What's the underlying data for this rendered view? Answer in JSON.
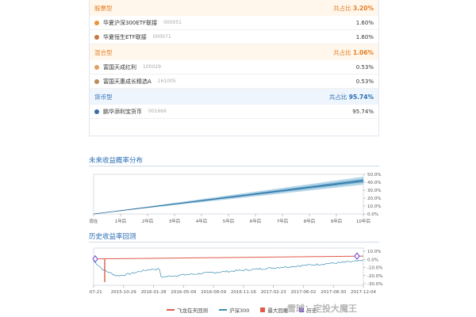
{
  "allocation": {
    "groups": [
      {
        "name": "股票型",
        "share_label": "共占比",
        "share_value": "3.20%",
        "funds": [
          {
            "name": "华夏沪深300ETF联接",
            "code": "000051",
            "pct": "1.60%",
            "color": "#e8943a"
          },
          {
            "name": "华夏恒生ETF联接",
            "code": "000071",
            "pct": "1.60%",
            "color": "#c8773f"
          }
        ]
      },
      {
        "name": "混合型",
        "share_label": "共占比",
        "share_value": "1.06%",
        "funds": [
          {
            "name": "富国天成红利",
            "code": "100029",
            "pct": "0.53%",
            "color": "#e0a060"
          },
          {
            "name": "富国天惠成长精选A",
            "code": "161005",
            "pct": "0.53%",
            "color": "#b98a5a"
          }
        ]
      },
      {
        "name": "货币型",
        "share_label": "共占比",
        "share_value": "95.74%",
        "funds": [
          {
            "name": "鹏华添利宝货币",
            "code": "001666",
            "pct": "95.74%",
            "color": "#3a6ea8"
          }
        ]
      }
    ]
  },
  "future_chart": {
    "title": "未来收益概率分布",
    "x_ticks": [
      "现在",
      "1年后",
      "2年后",
      "3年后",
      "4年后",
      "5年后",
      "6年后",
      "7年后",
      "8年后",
      "9年后",
      "10年后"
    ],
    "y_ticks": [
      "50.0%",
      "40.0%",
      "30.0%",
      "20.0%",
      "10.0%",
      "0.0%"
    ]
  },
  "history_chart": {
    "title": "历史收益率回测",
    "x_ticks": [
      "5-07-21",
      "2015-10-29",
      "2016-01-28",
      "2016-05-09",
      "2016-08-09",
      "2016-11-16",
      "2017-02-23",
      "2017-06-02",
      "2017-08-30",
      "2017-12-04"
    ],
    "y_ticks": [
      "10.0%",
      "0.0%",
      "-10.0%",
      "-20.0%",
      "-30.0%"
    ]
  },
  "legend": {
    "items": [
      {
        "label": "飞龙在天回测",
        "color": "#e05a4a",
        "type": "line"
      },
      {
        "label": "沪深300",
        "color": "#3a8fb0",
        "type": "line"
      },
      {
        "label": "最大回撤",
        "color": "#e05a4a",
        "type": "square"
      },
      {
        "label": "历史",
        "color": "#6a3fd0",
        "type": "square"
      }
    ]
  },
  "watermark": "雪球：定投大魔王",
  "colors": {
    "accent_blue": "#2a6db5",
    "accent_orange": "#e67e22",
    "backtest_line": "#e05a4a",
    "index_line": "#3a8fb0"
  }
}
